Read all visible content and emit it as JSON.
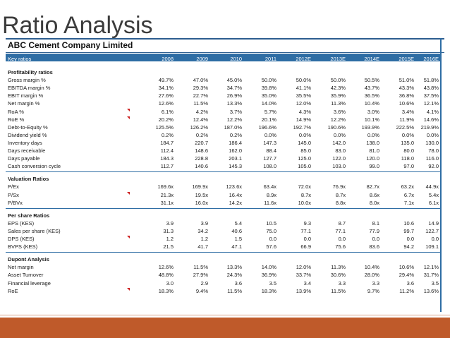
{
  "title": "Ratio Analysis",
  "company": "ABC Cement Company Limited",
  "header": {
    "label": "Key ratios",
    "years": [
      "2008",
      "2009",
      "2010",
      "2011",
      "2012E",
      "2013E",
      "2014E",
      "2015E",
      "2016E"
    ]
  },
  "sections": [
    {
      "name": "Profitability ratios",
      "rows": [
        {
          "label": "Gross margin %",
          "values": [
            "49.7%",
            "47.0%",
            "45.0%",
            "50.0%",
            "50.0%",
            "50.0%",
            "50.5%",
            "51.0%",
            "51.8%"
          ]
        },
        {
          "label": "EBITDA margin %",
          "values": [
            "34.1%",
            "29.3%",
            "34.7%",
            "39.8%",
            "41.1%",
            "42.3%",
            "43.7%",
            "43.3%",
            "43.8%"
          ]
        },
        {
          "label": "EBIT margin %",
          "values": [
            "27.6%",
            "22.7%",
            "26.9%",
            "35.0%",
            "35.5%",
            "35.9%",
            "36.5%",
            "36.8%",
            "37.5%"
          ]
        },
        {
          "label": "Net margin %",
          "values": [
            "12.6%",
            "11.5%",
            "13.3%",
            "14.0%",
            "12.0%",
            "11.3%",
            "10.4%",
            "10.6%",
            "12.1%"
          ]
        },
        {
          "label": "RoA %",
          "values": [
            "6.1%",
            "4.2%",
            "3.7%",
            "5.7%",
            "4.3%",
            "3.6%",
            "3.0%",
            "3.4%",
            "4.1%"
          ]
        },
        {
          "label": "RoE %",
          "values": [
            "20.2%",
            "12.4%",
            "12.2%",
            "20.1%",
            "14.9%",
            "12.2%",
            "10.1%",
            "11.9%",
            "14.6%"
          ]
        },
        {
          "label": "Debt-to-Equity %",
          "values": [
            "125.5%",
            "126.2%",
            "187.0%",
            "196.6%",
            "192.7%",
            "190.6%",
            "193.9%",
            "222.5%",
            "219.9%"
          ]
        },
        {
          "label": "Dividend yield %",
          "values": [
            "0.2%",
            "0.2%",
            "0.2%",
            "0.0%",
            "0.0%",
            "0.0%",
            "0.0%",
            "0.0%",
            "0.0%"
          ]
        },
        {
          "label": "Inventory days",
          "values": [
            "184.7",
            "220.7",
            "186.4",
            "147.3",
            "145.0",
            "142.0",
            "138.0",
            "135.0",
            "130.0"
          ]
        },
        {
          "label": "Days receivable",
          "values": [
            "112.4",
            "148.6",
            "162.0",
            "88.4",
            "85.0",
            "83.0",
            "81.0",
            "80.0",
            "78.0"
          ]
        },
        {
          "label": "Days payable",
          "values": [
            "184.3",
            "228.8",
            "203.1",
            "127.7",
            "125.0",
            "122.0",
            "120.0",
            "118.0",
            "116.0"
          ]
        },
        {
          "label": "Cash conversion cycle",
          "values": [
            "112.7",
            "140.6",
            "145.3",
            "108.0",
            "105.0",
            "103.0",
            "99.0",
            "97.0",
            "92.0"
          ]
        }
      ]
    },
    {
      "name": "Valuation Ratios",
      "rows": [
        {
          "label": "P/Ex",
          "values": [
            "169.6x",
            "169.9x",
            "123.6x",
            "63.4x",
            "72.0x",
            "76.9x",
            "82.7x",
            "63.2x",
            "44.9x"
          ]
        },
        {
          "label": "P/Sx",
          "values": [
            "21.3x",
            "19.5x",
            "16.4x",
            "8.9x",
            "8.7x",
            "8.7x",
            "8.6x",
            "6.7x",
            "5.4x"
          ]
        },
        {
          "label": "P/BVx",
          "values": [
            "31.1x",
            "16.0x",
            "14.2x",
            "11.6x",
            "10.0x",
            "8.8x",
            "8.0x",
            "7.1x",
            "6.1x"
          ]
        }
      ]
    },
    {
      "name": "Per share Ratios",
      "rows": [
        {
          "label": "EPS (KES)",
          "values": [
            "3.9",
            "3.9",
            "5.4",
            "10.5",
            "9.3",
            "8.7",
            "8.1",
            "10.6",
            "14.9"
          ]
        },
        {
          "label": "Sales per share (KES)",
          "values": [
            "31.3",
            "34.2",
            "40.6",
            "75.0",
            "77.1",
            "77.1",
            "77.9",
            "99.7",
            "122.7"
          ]
        },
        {
          "label": "DPS (KES)",
          "values": [
            "1.2",
            "1.2",
            "1.5",
            "0.0",
            "0.0",
            "0.0",
            "0.0",
            "0.0",
            "0.0"
          ]
        },
        {
          "label": "BVPS (KES)",
          "values": [
            "21.5",
            "41.7",
            "47.1",
            "57.6",
            "66.9",
            "75.6",
            "83.6",
            "94.2",
            "109.1"
          ]
        }
      ]
    },
    {
      "name": "Dupont Analysis",
      "rows": [
        {
          "label": "Net margin",
          "values": [
            "12.6%",
            "11.5%",
            "13.3%",
            "14.0%",
            "12.0%",
            "11.3%",
            "10.4%",
            "10.6%",
            "12.1%"
          ]
        },
        {
          "label": "Asset Turnover",
          "values": [
            "48.8%",
            "27.9%",
            "24.3%",
            "36.9%",
            "33.7%",
            "30.6%",
            "28.0%",
            "29.4%",
            "31.7%"
          ]
        },
        {
          "label": "Financial leverage",
          "values": [
            "3.0",
            "2.9",
            "3.6",
            "3.5",
            "3.4",
            "3.3",
            "3.3",
            "3.6",
            "3.5"
          ]
        },
        {
          "label": "RoE",
          "values": [
            "18.3%",
            "9.4%",
            "11.5%",
            "18.3%",
            "13.9%",
            "11.5%",
            "9.7%",
            "11.2%",
            "13.6%"
          ]
        }
      ]
    }
  ],
  "colors": {
    "header_bg": "#2e6da4",
    "footer_bg": "#bf5a2a",
    "marker": "#cc1f1f"
  }
}
